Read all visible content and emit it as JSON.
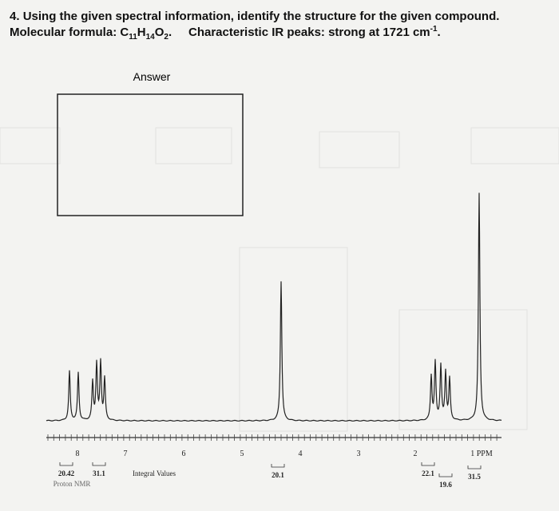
{
  "question": {
    "number": "4.",
    "text": "Using the given spectral information, identify the structure for the given compound.",
    "formula_label": "Molecular formula:",
    "formula": [
      "C",
      "11",
      "H",
      "14",
      "O",
      "2",
      "."
    ],
    "ir": {
      "text": "Characteristic IR peaks: strong at 1721 cm",
      "superscript": "-1",
      "end": "."
    }
  },
  "answer": {
    "label": "Answer"
  },
  "spectrum": {
    "ppm_labels": [
      "8",
      "7",
      "6",
      "5",
      "4",
      "3",
      "2",
      "1 PPM"
    ],
    "integrals": [
      "20.42",
      "31.1",
      "20.1",
      "22.1",
      "19.6",
      "31.5"
    ],
    "integral_caption": "Integral Values",
    "caption": "Proton NMR"
  }
}
